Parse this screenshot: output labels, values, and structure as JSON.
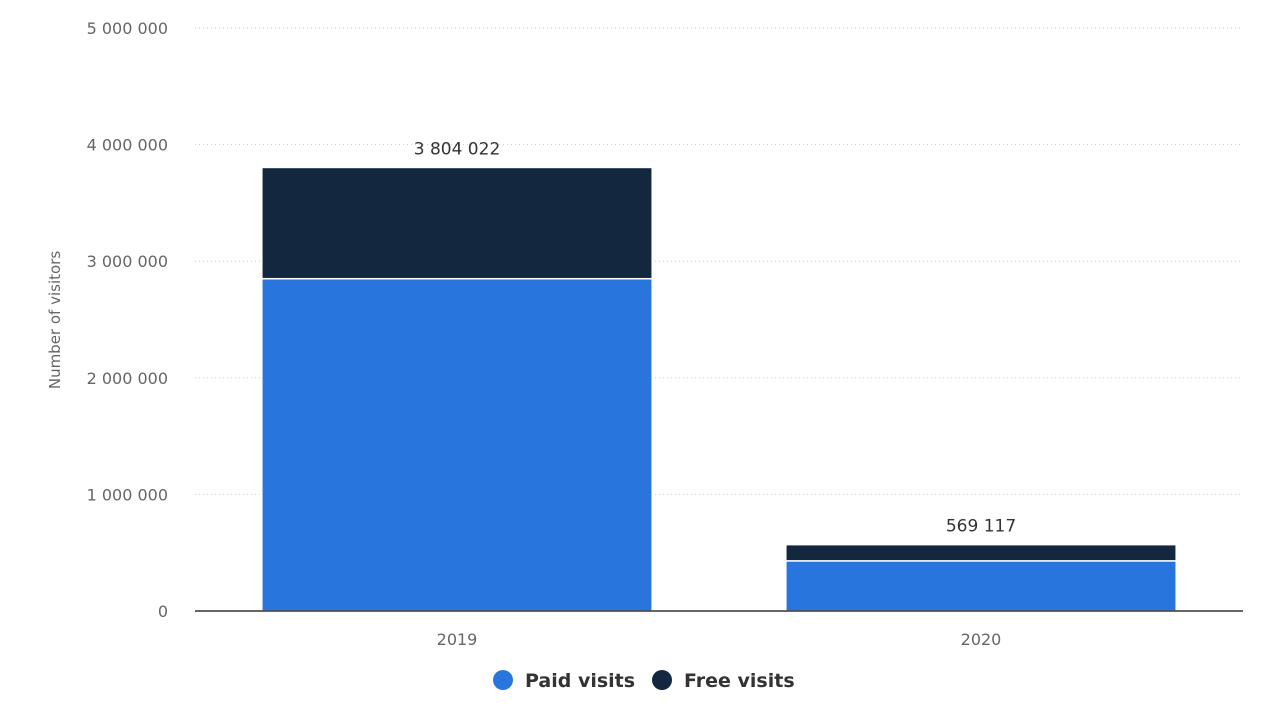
{
  "chart_data": {
    "type": "bar",
    "stacked": true,
    "categories": [
      "2019",
      "2020"
    ],
    "series": [
      {
        "name": "Paid visits",
        "color": "#2876dd",
        "values": [
          2850000,
          430000
        ]
      },
      {
        "name": "Free visits",
        "color": "#13283e",
        "values": [
          954022,
          139117
        ]
      }
    ],
    "totals": [
      3804022,
      569117
    ],
    "total_labels": [
      "3 804 022",
      "569 117"
    ],
    "ylabel": "Number of visitors",
    "xlabel": "",
    "ylim": [
      0,
      5000000
    ],
    "yticks": [
      0,
      1000000,
      2000000,
      3000000,
      4000000,
      5000000
    ],
    "ytick_labels": [
      "0",
      "1 000 000",
      "2 000 000",
      "3 000 000",
      "4 000 000",
      "5 000 000"
    ],
    "grid": true,
    "legend_position": "bottom"
  }
}
